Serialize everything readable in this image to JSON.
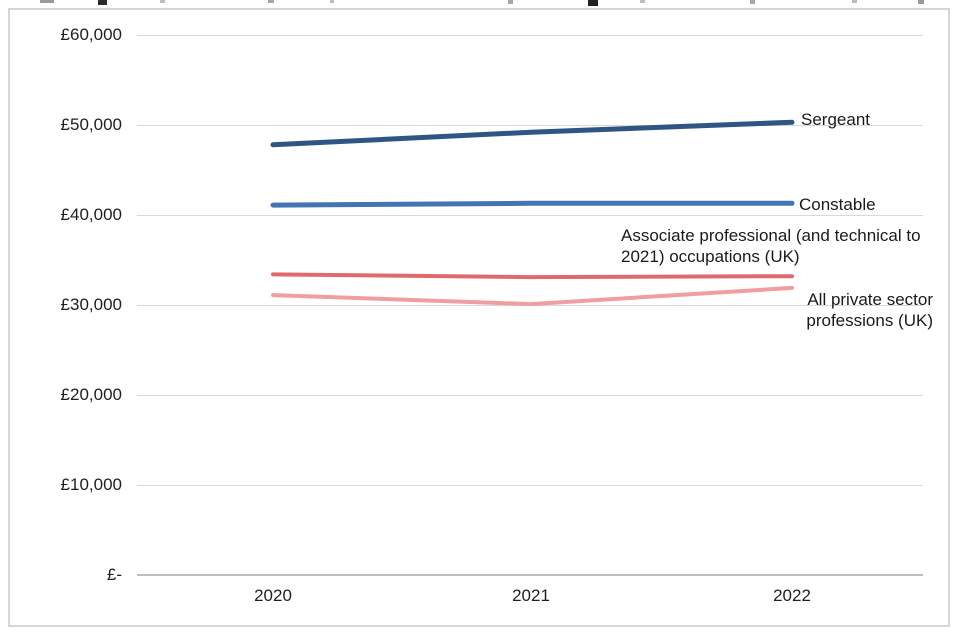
{
  "chart_data": {
    "type": "line",
    "title": "",
    "categories": [
      "2020",
      "2021",
      "2022"
    ],
    "series": [
      {
        "name": "Sergeant",
        "values": [
          47800,
          49200,
          50300
        ],
        "color": "#2e5584",
        "stroke_width": 5
      },
      {
        "name": "Constable",
        "values": [
          41100,
          41300,
          41300
        ],
        "color": "#4374b4",
        "stroke_width": 5
      },
      {
        "name": "Associate professional (and technical to 2021) occupations (UK)",
        "values": [
          33400,
          33100,
          33200
        ],
        "color": "#de6a6e",
        "stroke_width": 4
      },
      {
        "name": "All private sector professions (UK)",
        "values": [
          31100,
          30100,
          31900
        ],
        "color": "#f09ea0",
        "stroke_width": 4
      }
    ],
    "ylim": [
      0,
      60000
    ],
    "yticks": [
      {
        "value": 60000,
        "label": "£60,000"
      },
      {
        "value": 50000,
        "label": "£50,000"
      },
      {
        "value": 40000,
        "label": "£40,000"
      },
      {
        "value": 30000,
        "label": "£30,000"
      },
      {
        "value": 20000,
        "label": "£20,000"
      },
      {
        "value": 10000,
        "label": "£10,000"
      },
      {
        "value": 0,
        "label": "£-"
      }
    ],
    "grid": true,
    "legend_position": "end-of-line-labels"
  },
  "annotations": {
    "sergeant": "Sergeant",
    "constable": "Constable",
    "associate": "Associate professional (and technical to 2021) occupations (UK)",
    "private": "All private sector professions (UK)"
  },
  "colors": {
    "gridline": "#d9d9d9",
    "zero_axis": "#bfbfbf",
    "frame_border": "#d6d6d6",
    "text": "#1f1f1f"
  }
}
